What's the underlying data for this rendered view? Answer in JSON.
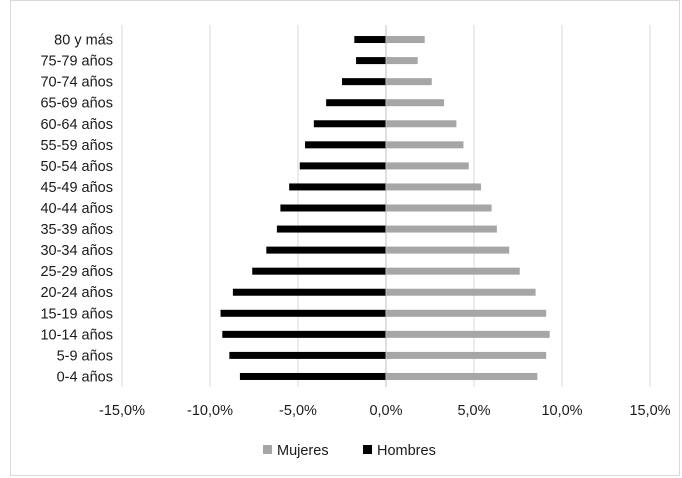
{
  "chart_data": {
    "type": "bar",
    "orientation": "horizontal",
    "title": "",
    "xlabel": "",
    "ylabel": "",
    "categories": [
      "0-4 años",
      "5-9 años",
      "10-14 años",
      "15-19 años",
      "20-24 años",
      "25-29 años",
      "30-34 años",
      "35-39 años",
      "40-44 años",
      "45-49 años",
      "50-54 años",
      "55-59 años",
      "60-64 años",
      "65-69 años",
      "70-74 años",
      "75-79 años",
      "80 y más"
    ],
    "series": [
      {
        "name": "Mujeres",
        "color": "#a6a6a6",
        "values": [
          8.6,
          9.1,
          9.3,
          9.1,
          8.5,
          7.6,
          7.0,
          6.3,
          6.0,
          5.4,
          4.7,
          4.4,
          4.0,
          3.3,
          2.6,
          1.8,
          2.2
        ]
      },
      {
        "name": "Hombres",
        "color": "#000000",
        "values": [
          -8.3,
          -8.9,
          -9.3,
          -9.4,
          -8.7,
          -7.6,
          -6.8,
          -6.2,
          -6.0,
          -5.5,
          -4.9,
          -4.6,
          -4.1,
          -3.4,
          -2.5,
          -1.7,
          -1.8
        ]
      }
    ],
    "xlim": [
      -15,
      15
    ],
    "x_ticks": [
      -15,
      -10,
      -5,
      0,
      5,
      10,
      15
    ],
    "x_tick_labels": [
      "-15,0%",
      "-10,0%",
      "-5,0%",
      "0,0%",
      "5,0%",
      "10,0%",
      "15,0%"
    ],
    "grid": true,
    "legend_position": "bottom",
    "legend": [
      {
        "name": "Mujeres",
        "color": "#a6a6a6"
      },
      {
        "name": "Hombres",
        "color": "#000000"
      }
    ]
  }
}
